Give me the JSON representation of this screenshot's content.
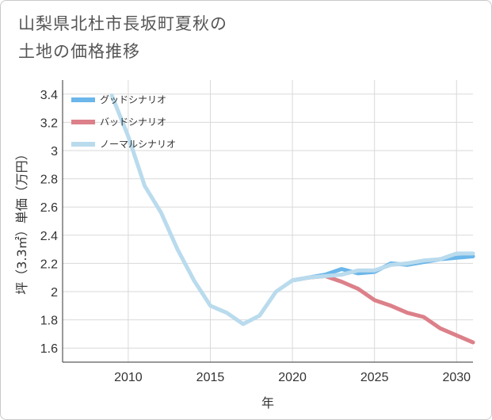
{
  "title_line1": "山梨県北杜市長坂町夏秋の",
  "title_line2": "土地の価格推移",
  "chart_data": {
    "type": "line",
    "title": "山梨県北杜市長坂町夏秋の土地の価格推移",
    "xlabel": "年",
    "ylabel": "坪（3.3㎡）単価（万円）",
    "xlim": [
      2006,
      2031
    ],
    "ylim": [
      1.5,
      3.5
    ],
    "x_ticks": [
      2010,
      2015,
      2020,
      2025,
      2030
    ],
    "y_ticks": [
      1.6,
      1.8,
      2,
      2.2,
      2.4,
      2.6,
      2.8,
      3,
      3.2,
      3.4
    ],
    "x_tick_labels": [
      "2010",
      "2015",
      "2020",
      "2025",
      "2030"
    ],
    "y_tick_labels": [
      "1.6",
      "1.8",
      "2",
      "2.2",
      "2.4",
      "2.6",
      "2.8",
      "3",
      "3.2",
      "3.4"
    ],
    "grid": true,
    "legend_position": "top-left",
    "series": [
      {
        "name": "グッドシナリオ",
        "color": "#6bb6ea",
        "x": [
          2020,
          2021,
          2022,
          2023,
          2024,
          2025,
          2026,
          2027,
          2028,
          2029,
          2030,
          2031
        ],
        "y": [
          2.08,
          2.1,
          2.12,
          2.16,
          2.13,
          2.14,
          2.2,
          2.19,
          2.21,
          2.23,
          2.24,
          2.25
        ]
      },
      {
        "name": "バッドシナリオ",
        "color": "#dc8089",
        "x": [
          2020,
          2021,
          2022,
          2023,
          2024,
          2025,
          2026,
          2027,
          2028,
          2029,
          2030,
          2031
        ],
        "y": [
          2.08,
          2.1,
          2.11,
          2.07,
          2.02,
          1.94,
          1.9,
          1.85,
          1.82,
          1.74,
          1.69,
          1.64
        ]
      },
      {
        "name": "ノーマルシナリオ",
        "color": "#b9dbed",
        "x": [
          2009,
          2010,
          2011,
          2012,
          2013,
          2014,
          2015,
          2016,
          2017,
          2018,
          2019,
          2020,
          2021,
          2022,
          2023,
          2024,
          2025,
          2026,
          2027,
          2028,
          2029,
          2030,
          2031
        ],
        "y": [
          3.39,
          3.1,
          2.75,
          2.56,
          2.3,
          2.08,
          1.9,
          1.85,
          1.77,
          1.83,
          2.0,
          2.08,
          2.1,
          2.11,
          2.12,
          2.15,
          2.15,
          2.19,
          2.2,
          2.22,
          2.23,
          2.27,
          2.27
        ]
      }
    ]
  }
}
